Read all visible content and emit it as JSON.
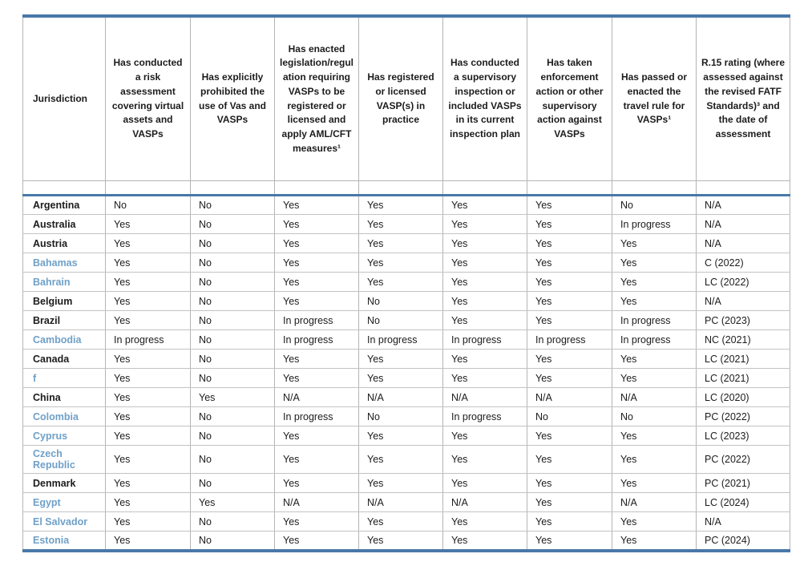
{
  "colors": {
    "accent_blue": "#4878a8",
    "link_blue": "#6fa0c8",
    "grid_gray": "#b5b5b5",
    "row_line_gray": "#c3c3c3",
    "text_black": "#1c1c1c"
  },
  "table": {
    "columns": [
      {
        "label": "Jurisdiction"
      },
      {
        "label": "Has conducted a risk assessment covering virtual assets and VASPs"
      },
      {
        "label": "Has explicitly prohibited the use of Vas and VASPs"
      },
      {
        "label": "Has enacted legislation/regulation requiring VASPs to be registered or licensed and apply AML/CFT measures¹"
      },
      {
        "label": "Has registered or licensed VASP(s) in practice"
      },
      {
        "label": "Has conducted a supervisory inspection or included VASPs in its current inspection plan"
      },
      {
        "label": "Has taken enforcement action or other supervisory action against VASPs"
      },
      {
        "label": "Has passed or enacted the travel rule for VASPs¹"
      },
      {
        "label": "R.15 rating (where assessed against the revised FATF Standards)³ and the date of assessment"
      }
    ],
    "rows": [
      {
        "jurisdiction": "Argentina",
        "is_link": false,
        "values": [
          "No",
          "No",
          "Yes",
          "Yes",
          "Yes",
          "Yes",
          "No",
          "N/A"
        ]
      },
      {
        "jurisdiction": "Australia",
        "is_link": false,
        "values": [
          "Yes",
          "No",
          "Yes",
          "Yes",
          "Yes",
          "Yes",
          "In progress",
          "N/A"
        ]
      },
      {
        "jurisdiction": "Austria",
        "is_link": false,
        "values": [
          "Yes",
          "No",
          "Yes",
          "Yes",
          "Yes",
          "Yes",
          "Yes",
          "N/A"
        ]
      },
      {
        "jurisdiction": "Bahamas",
        "is_link": true,
        "values": [
          "Yes",
          "No",
          "Yes",
          "Yes",
          "Yes",
          "Yes",
          "Yes",
          "C (2022)"
        ]
      },
      {
        "jurisdiction": "Bahrain",
        "is_link": true,
        "values": [
          "Yes",
          "No",
          "Yes",
          "Yes",
          "Yes",
          "Yes",
          "Yes",
          "LC (2022)"
        ]
      },
      {
        "jurisdiction": "Belgium",
        "is_link": false,
        "values": [
          "Yes",
          "No",
          "Yes",
          "No",
          "Yes",
          "Yes",
          "Yes",
          "N/A"
        ]
      },
      {
        "jurisdiction": "Brazil",
        "is_link": false,
        "values": [
          "Yes",
          "No",
          "In progress",
          "No",
          "Yes",
          "Yes",
          "In progress",
          "PC (2023)"
        ]
      },
      {
        "jurisdiction": "Cambodia",
        "is_link": true,
        "values": [
          "In progress",
          "No",
          "In progress",
          "In progress",
          "In progress",
          "In progress",
          "In progress",
          "NC (2021)"
        ]
      },
      {
        "jurisdiction": "Canada",
        "is_link": false,
        "values": [
          "Yes",
          "No",
          "Yes",
          "Yes",
          "Yes",
          "Yes",
          "Yes",
          "LC (2021)"
        ]
      },
      {
        "jurisdiction": "f",
        "is_link": true,
        "values": [
          "Yes",
          "No",
          "Yes",
          "Yes",
          "Yes",
          "Yes",
          "Yes",
          "LC (2021)"
        ]
      },
      {
        "jurisdiction": "China",
        "is_link": false,
        "values": [
          "Yes",
          "Yes",
          "N/A",
          "N/A",
          "N/A",
          "N/A",
          "N/A",
          "LC (2020)"
        ]
      },
      {
        "jurisdiction": "Colombia",
        "is_link": true,
        "values": [
          "Yes",
          "No",
          "In progress",
          "No",
          "In progress",
          "No",
          "No",
          "PC (2022)"
        ]
      },
      {
        "jurisdiction": "Cyprus",
        "is_link": true,
        "values": [
          "Yes",
          "No",
          "Yes",
          "Yes",
          "Yes",
          "Yes",
          "Yes",
          "LC (2023)"
        ]
      },
      {
        "jurisdiction": "Czech Republic",
        "is_link": true,
        "values": [
          "Yes",
          "No",
          "Yes",
          "Yes",
          "Yes",
          "Yes",
          "Yes",
          "PC (2022)"
        ]
      },
      {
        "jurisdiction": "Denmark",
        "is_link": false,
        "values": [
          "Yes",
          "No",
          "Yes",
          "Yes",
          "Yes",
          "Yes",
          "Yes",
          "PC (2021)"
        ]
      },
      {
        "jurisdiction": "Egypt",
        "is_link": true,
        "values": [
          "Yes",
          "Yes",
          "N/A",
          "N/A",
          "N/A",
          "Yes",
          "N/A",
          "LC (2024)"
        ]
      },
      {
        "jurisdiction": "El Salvador",
        "is_link": true,
        "values": [
          "Yes",
          "No",
          "Yes",
          "Yes",
          "Yes",
          "Yes",
          "Yes",
          "N/A"
        ]
      },
      {
        "jurisdiction": "Estonia",
        "is_link": true,
        "values": [
          "Yes",
          "No",
          "Yes",
          "Yes",
          "Yes",
          "Yes",
          "Yes",
          "PC (2024)"
        ]
      }
    ]
  }
}
